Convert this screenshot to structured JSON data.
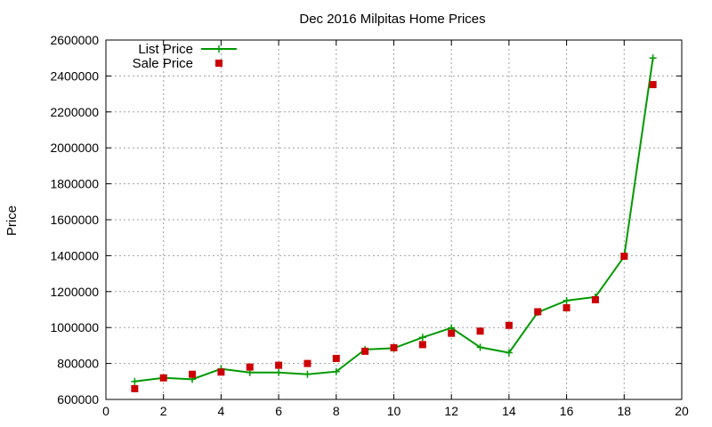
{
  "chart_data": {
    "type": "line",
    "title": "Dec 2016 Milpitas Home Prices",
    "xlabel": "",
    "ylabel": "Price",
    "xlim": [
      0,
      20
    ],
    "ylim": [
      600000,
      2600000
    ],
    "xticks": [
      0,
      2,
      4,
      6,
      8,
      10,
      12,
      14,
      16,
      18,
      20
    ],
    "yticks": [
      600000,
      800000,
      1000000,
      1200000,
      1400000,
      1600000,
      1800000,
      2000000,
      2200000,
      2400000,
      2600000
    ],
    "grid": true,
    "legend": "top-left",
    "series": [
      {
        "name": "List Price",
        "style": "line+cross",
        "color": "#009900",
        "x": [
          1,
          2,
          3,
          4,
          5,
          6,
          7,
          8,
          9,
          10,
          11,
          12,
          13,
          14,
          15,
          16,
          17,
          18,
          19
        ],
        "values": [
          700000,
          720000,
          712000,
          770000,
          750000,
          750000,
          740000,
          755000,
          878000,
          885000,
          945000,
          998000,
          890000,
          860000,
          1085000,
          1150000,
          1170000,
          1395000,
          2500000
        ]
      },
      {
        "name": "Sale Price",
        "style": "square",
        "color": "#cc0000",
        "x": [
          1,
          2,
          3,
          4,
          5,
          6,
          7,
          8,
          9,
          10,
          11,
          12,
          13,
          14,
          15,
          16,
          17,
          18,
          19
        ],
        "values": [
          660000,
          720000,
          740000,
          752000,
          780000,
          790000,
          800000,
          828000,
          868000,
          888000,
          905000,
          968000,
          980000,
          1012000,
          1088000,
          1110000,
          1155000,
          1397000,
          2352000
        ]
      }
    ]
  }
}
